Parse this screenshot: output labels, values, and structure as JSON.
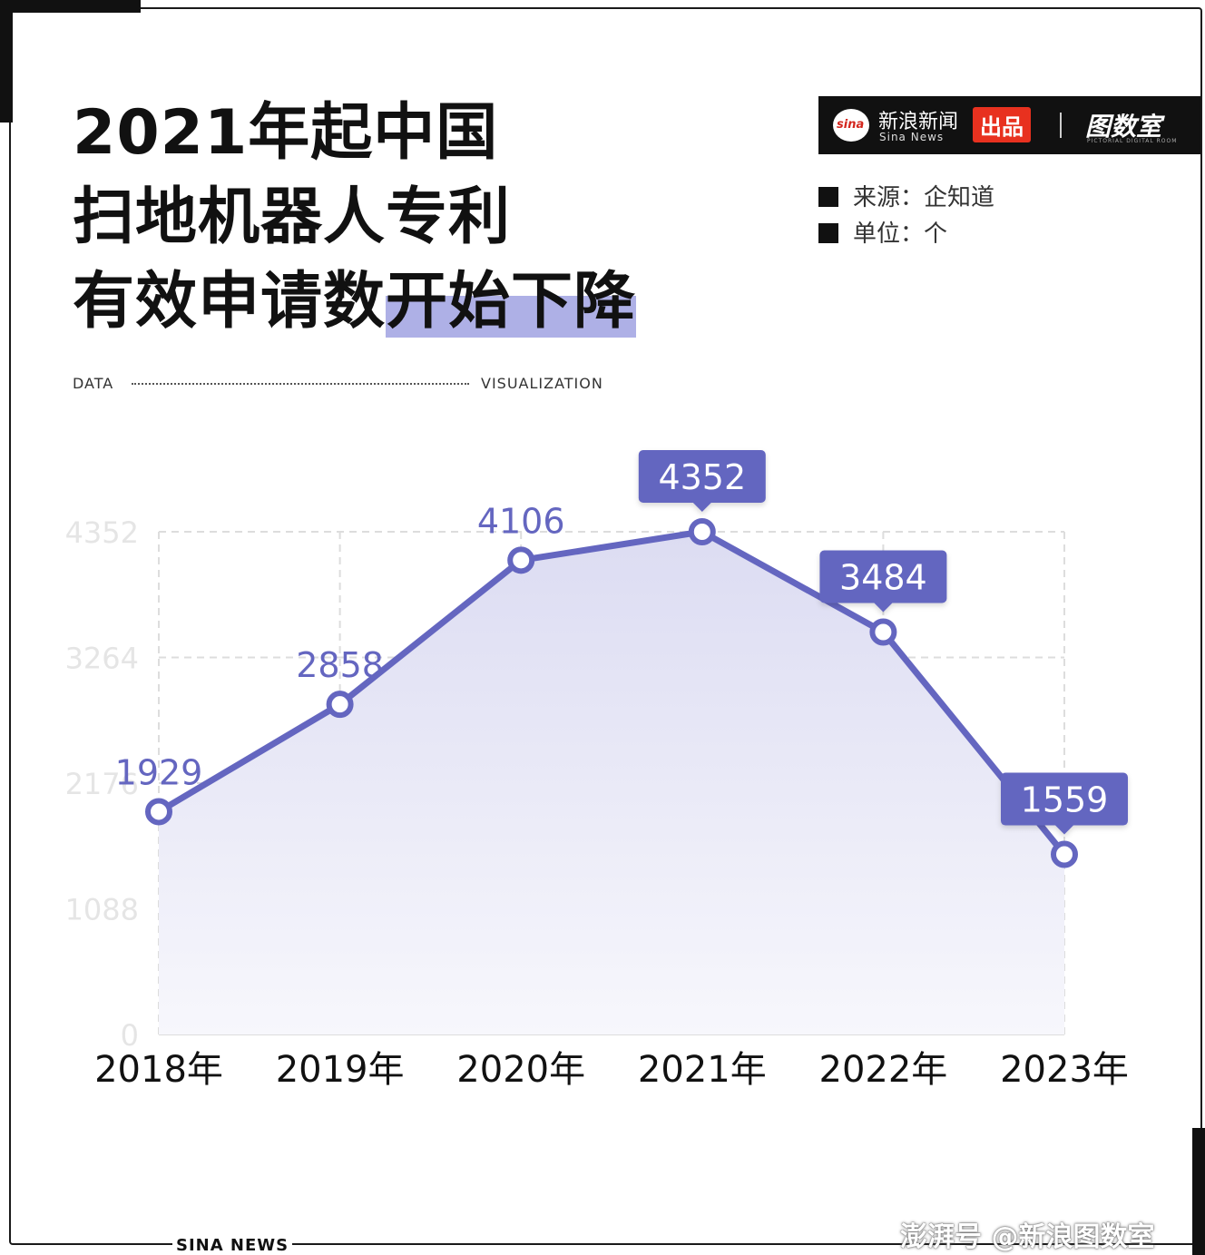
{
  "title": {
    "line1": "2021年起中国",
    "line2": "扫地机器人专利",
    "line3a": "有效申请数",
    "line3b": "开始下降"
  },
  "brand": {
    "logo": "sina",
    "name_cn": "新浪新闻",
    "name_en": "Sina News",
    "badge": "出品",
    "room": "图数室",
    "room_sub": "PICTORIAL DIGITAL ROOM"
  },
  "meta": {
    "source": "来源：企知道",
    "unit": "单位：个"
  },
  "labels": {
    "data": "DATA",
    "visualization": "VISUALIZATION"
  },
  "footer": {
    "text": "SINA NEWS",
    "watermark": "澎湃号 @新浪图数室"
  },
  "colors": {
    "line": "#6466c0",
    "fill_top": "#dcdcf2",
    "fill_bottom": "#f7f7fc",
    "grid": "#dddddd",
    "tick": "#e5e5e5",
    "highlight": "#aeb0e6"
  },
  "chart_data": {
    "type": "line",
    "categories": [
      "2018年",
      "2019年",
      "2020年",
      "2021年",
      "2022年",
      "2023年"
    ],
    "values": [
      1929,
      2858,
      4106,
      4352,
      3484,
      1559
    ],
    "yticks": [
      0,
      1088,
      2176,
      3264,
      4352
    ],
    "ylim": [
      0,
      4352
    ],
    "boxed_labels": [
      false,
      false,
      false,
      true,
      true,
      true
    ],
    "grid": true
  }
}
